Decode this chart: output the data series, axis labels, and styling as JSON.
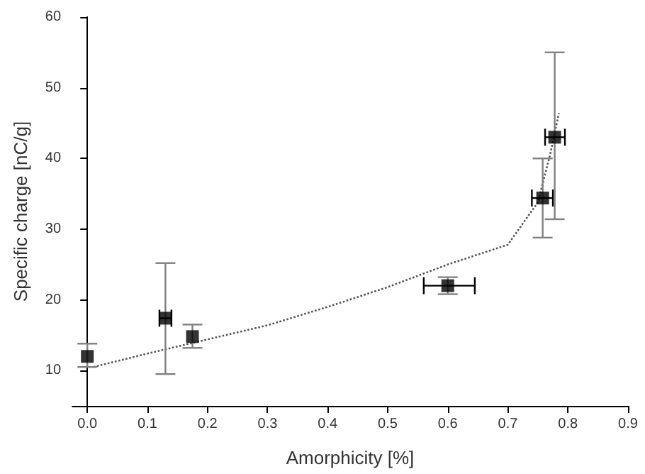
{
  "chart_data": {
    "type": "scatter",
    "xlabel": "Amorphicity [%]",
    "ylabel": "Specific charge [nC/g]",
    "xlim": [
      -0.025,
      0.9
    ],
    "ylim": [
      5,
      60
    ],
    "xticks": [
      {
        "value": 0,
        "label": "0.0"
      },
      0.1,
      0.2,
      0.3,
      0.4,
      0.5,
      0.6,
      0.7,
      0.8,
      0.9
    ],
    "yticks": [
      10,
      20,
      30,
      40,
      50,
      60
    ],
    "grid": false,
    "series": [
      {
        "type": "line",
        "color": "#555555",
        "marker": "none",
        "line_style": "dotted",
        "x": [
          0.01,
          0.1,
          0.2,
          0.3,
          0.4,
          0.5,
          0.6,
          0.7,
          0.75,
          0.77,
          0.785
        ],
        "values": [
          10.5,
          12.4,
          14.4,
          16.4,
          19,
          21.8,
          25,
          27.8,
          33.8,
          40.4,
          46.4
        ]
      },
      {
        "color": "#000000",
        "marker": "square",
        "x": [
          0,
          0.13,
          0.175,
          0.6,
          0.758,
          0.778
        ],
        "values": [
          12,
          17.4,
          14.8,
          22,
          34.4,
          43
        ],
        "errors": [
          [
            10.5,
            13.8
          ],
          [
            9.5,
            25.2
          ],
          [
            13.2,
            16.5
          ],
          [
            20.8,
            23.2
          ],
          [
            28.8,
            40
          ],
          [
            31.4,
            55
          ]
        ],
        "xerrors": [
          null,
          [
            0.12,
            0.14
          ],
          null,
          [
            0.56,
            0.645
          ],
          [
            0.74,
            0.775
          ],
          [
            0.762,
            0.795
          ]
        ]
      }
    ]
  }
}
